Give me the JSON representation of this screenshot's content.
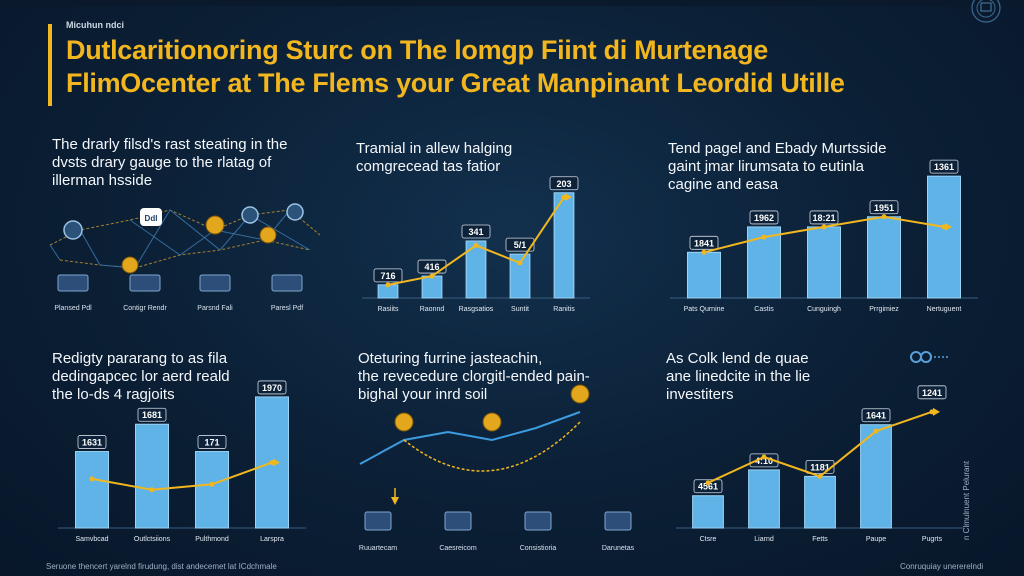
{
  "header": {
    "tiny_label": "Micuhun ndci",
    "title_line1": "Dutlcaritionoring Sturc on The lomgp Fiint di Murtenage",
    "title_line2": "FlimOcenter at The Flems your Great Manpinant Leordid Utille"
  },
  "panels": [
    {
      "text": [
        "The drarly filsd's rast steating in the",
        "dvsts drary gauge to the rlatag of",
        "illerman hsside"
      ]
    },
    {
      "text": [
        "Tramial in allew halging",
        "comgrecead tas fatior"
      ]
    },
    {
      "text": [
        "Tend pagel and Ebady Murtsside",
        "gaint jmar lirumsata to eutinla",
        "cagine and easa"
      ]
    },
    {
      "text": [
        "Redigty pararang to as fila",
        "dedingapcec lor aerd reald",
        "the lo-ds 4 ragjoits"
      ]
    },
    {
      "text": [
        "Oteturing furrine jasteachin,",
        "the revecedure clorgitl-ended pain-",
        "bighal your inrd soil"
      ]
    },
    {
      "text": [
        "As Colk lend de quae",
        "ane linedcite in the lie",
        "investiters"
      ]
    }
  ],
  "network": {
    "labels": [
      "Plansed Pdl",
      "Contigr Rendr",
      "Parsnd Fali",
      "Paresl Pdf"
    ],
    "center_badge": "Ddl"
  },
  "footers": {
    "left": "Seruone thencert yarelnd firudung, dist andecemet lat ICdchmale",
    "right": "Conruquiay unererelndi"
  },
  "side_vertical": "n Clmulnuent Pelurant",
  "side_badge": "",
  "chart_data": [
    {
      "type": "bar",
      "categories": [
        "Rasiits",
        "Raonnd",
        "Rasgsatios",
        "Suntit",
        "Ranitis"
      ],
      "values": [
        3,
        5,
        13,
        10,
        24
      ],
      "value_labels": [
        "716",
        "416",
        "341",
        "5/1",
        "203"
      ],
      "overlay_line": [
        3,
        5,
        12,
        8,
        23
      ],
      "ylim": [
        0,
        26
      ]
    },
    {
      "type": "bar",
      "categories": [
        "Pats Qurnine",
        "Castis",
        "Cunguingh",
        "Prrgimiez",
        "Nertuguent"
      ],
      "values": [
        9,
        14,
        14,
        16,
        24
      ],
      "value_labels": [
        "1841",
        "1962",
        "18:21",
        "1951",
        "1361"
      ],
      "overlay_line": [
        9,
        12,
        14,
        16,
        14
      ],
      "ylim": [
        0,
        26
      ]
    },
    {
      "type": "bar",
      "categories": [
        "Samvbcad",
        "Outlctsiions",
        "Pulthmond",
        "Larspra"
      ],
      "values": [
        14,
        19,
        14,
        24
      ],
      "value_labels": [
        "1631",
        "1681",
        "171",
        "1970"
      ],
      "overlay_line": [
        9,
        7,
        8,
        12
      ],
      "ylim": [
        0,
        26
      ]
    },
    {
      "type": "line",
      "x_labels": [
        "Ruuartecam",
        "Caesreicom",
        "Consistioria",
        "Darunetas"
      ],
      "values": [
        4,
        10,
        12,
        10,
        13,
        17
      ],
      "ylim": [
        0,
        20
      ]
    },
    {
      "type": "bar",
      "categories": [
        "Ctsre",
        "Liarnd",
        "Fetts",
        "Paupe",
        "Pugrts"
      ],
      "values": [
        5,
        9,
        8,
        16,
        0
      ],
      "value_labels": [
        "4561",
        "4:10",
        "1181",
        "1641",
        "1241"
      ],
      "overlay_line": [
        7,
        11,
        8,
        15,
        18
      ],
      "ylim": [
        0,
        22
      ]
    }
  ]
}
